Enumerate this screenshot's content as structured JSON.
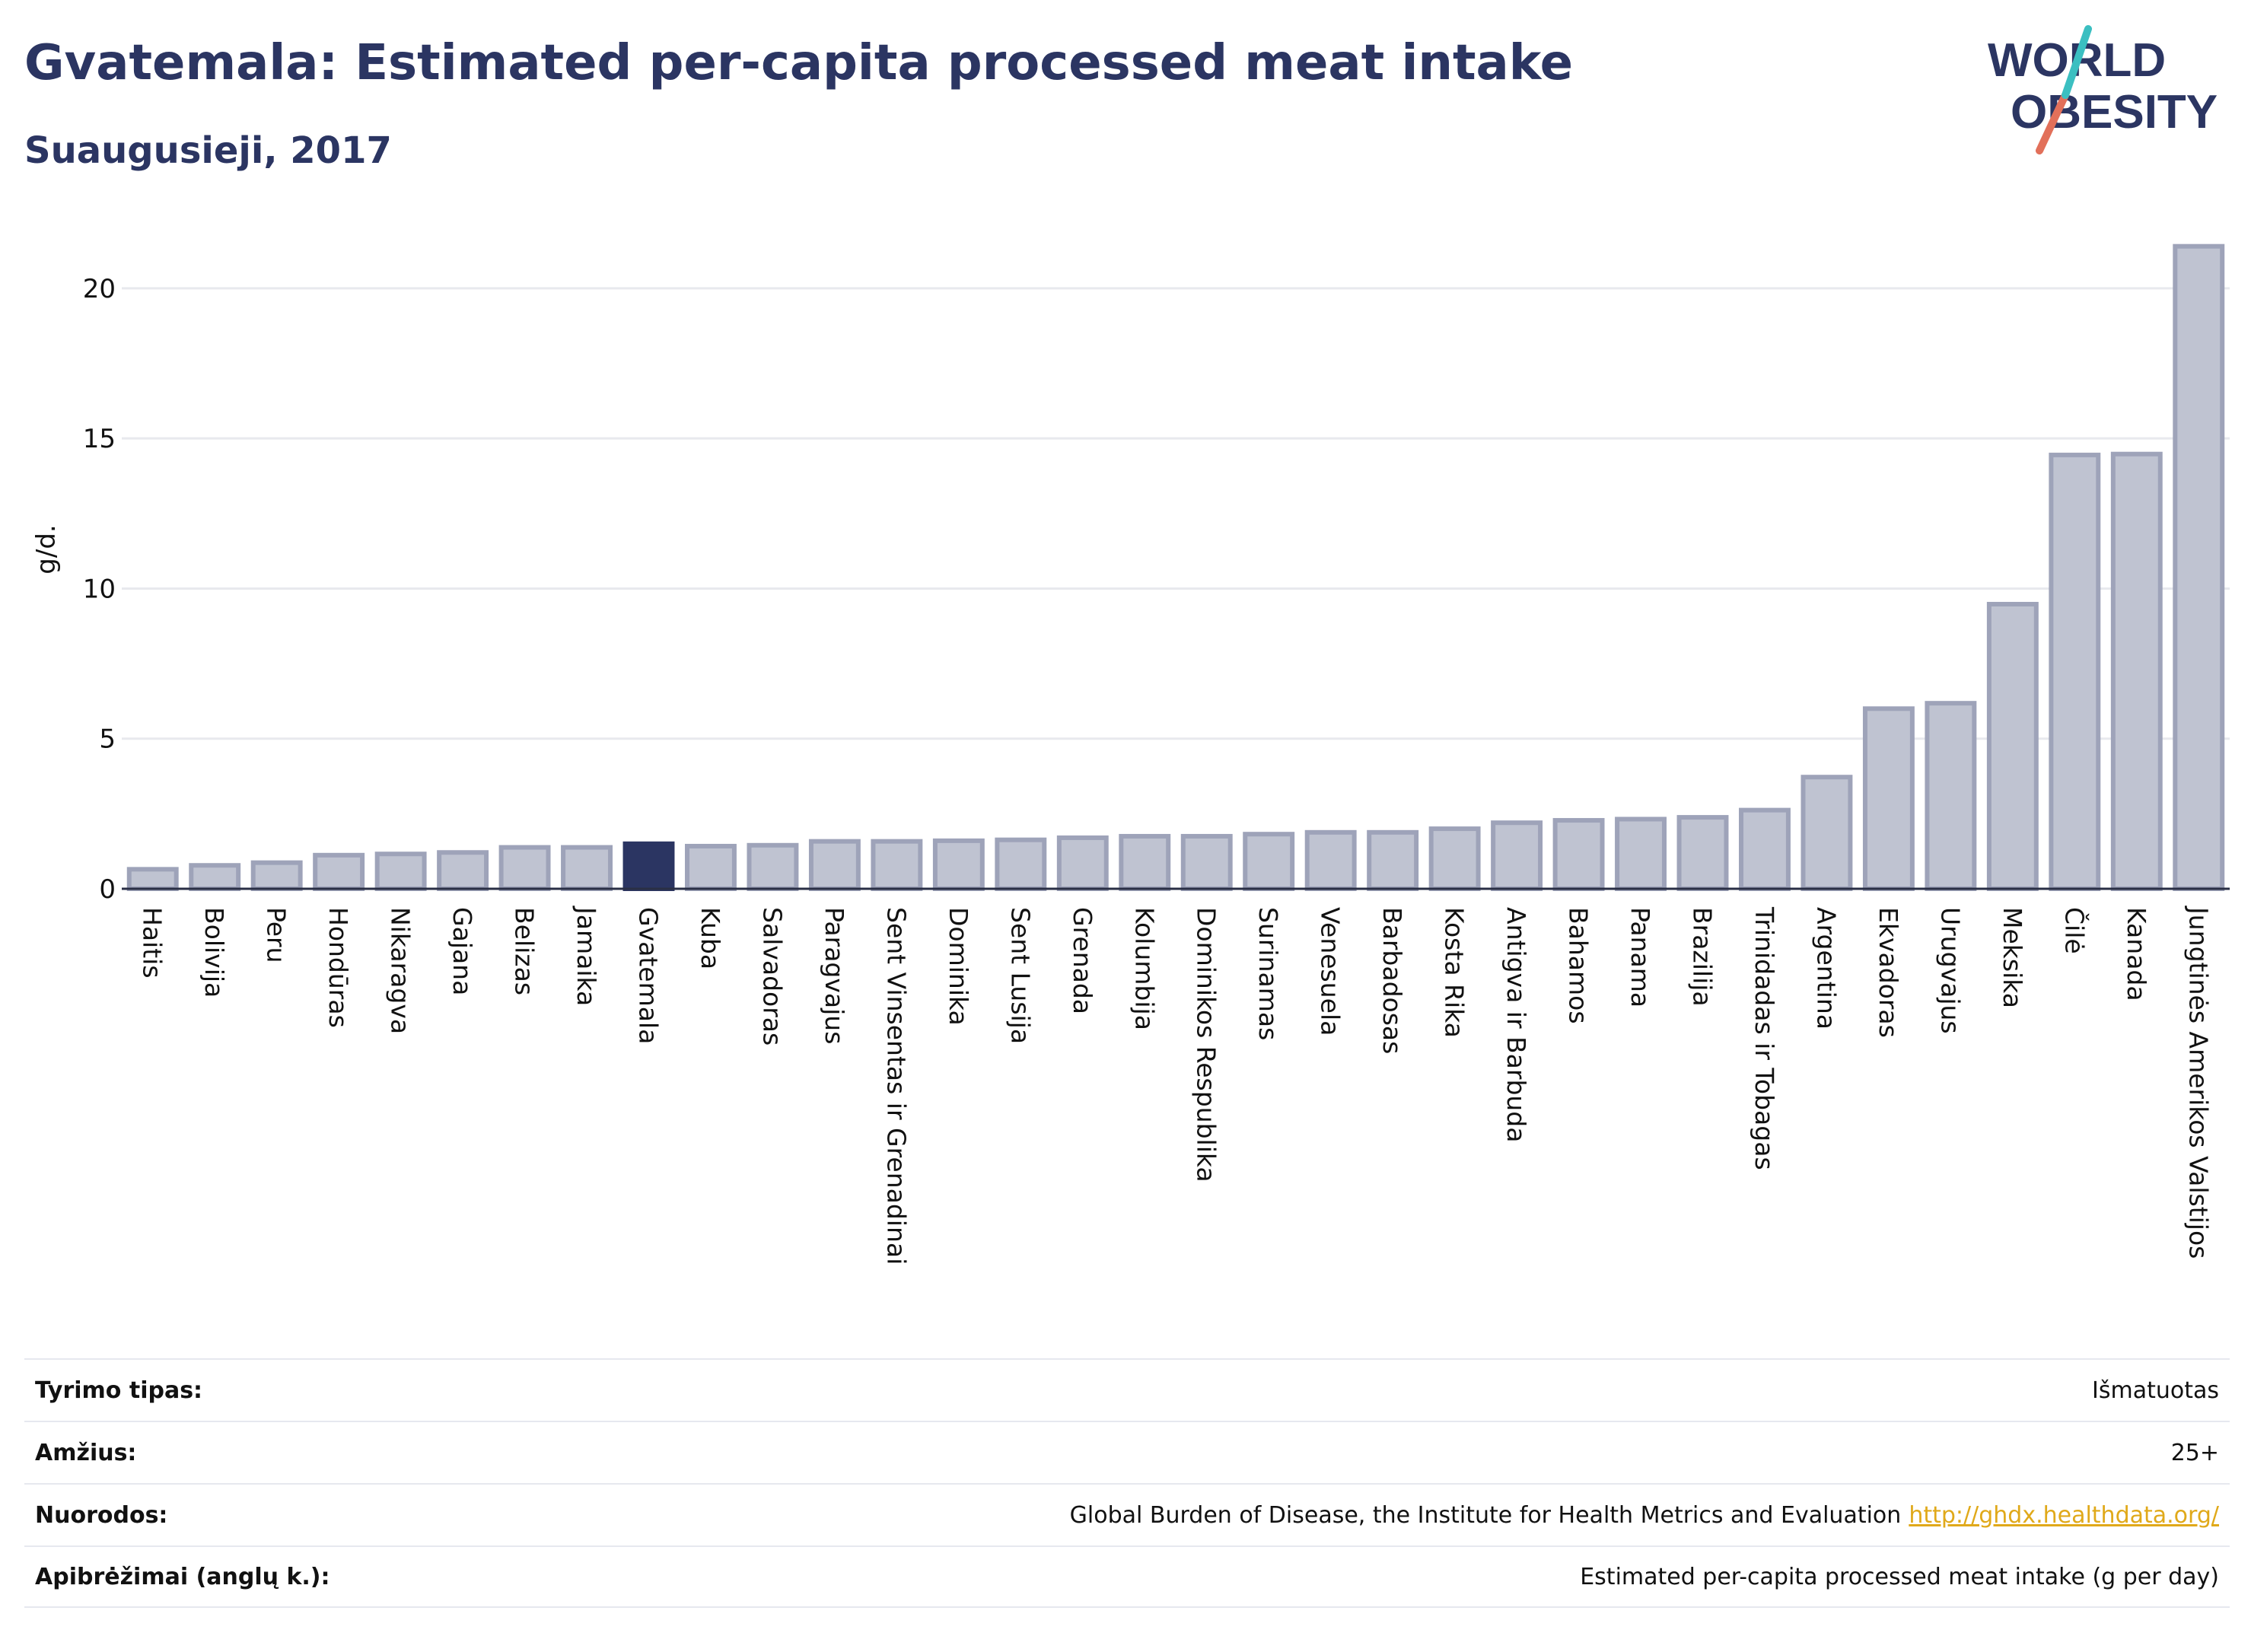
{
  "header": {
    "title": "Gvatemala: Estimated per-capita processed meat intake",
    "subtitle": "Suaugusieji, 2017"
  },
  "logo": {
    "line1": "WORLD",
    "line2": "OBESITY"
  },
  "colors": {
    "title": "#2b3562",
    "bar": "#bfc3d1",
    "bar_border": "#9ea3b9",
    "highlight": "#2b3562",
    "link": "#e0a91a"
  },
  "chart_data": {
    "type": "bar",
    "ylabel": "g/d.",
    "ylim": [
      0,
      22
    ],
    "yticks": [
      0,
      5,
      10,
      15,
      20
    ],
    "grid": true,
    "highlight": "Gvatemala",
    "categories": [
      "Haitis",
      "Bolivija",
      "Peru",
      "Hondūras",
      "Nikaragva",
      "Gajana",
      "Belizas",
      "Jamaika",
      "Gvatemala",
      "Kuba",
      "Salvadoras",
      "Paragvajus",
      "Sent Vinsentas ir Grenadinai",
      "Dominika",
      "Sent Lusija",
      "Grenada",
      "Kolumbija",
      "Dominikos Respublika",
      "Surinamas",
      "Venesuela",
      "Barbadosas",
      "Kosta Rika",
      "Antigva ir Barbuda",
      "Bahamos",
      "Panama",
      "Brazilija",
      "Trinidadas ir Tobagas",
      "Argentina",
      "Ekvadoras",
      "Urugvajus",
      "Meksika",
      "Čilė",
      "Kanada",
      "Jungtinės Amerikos Valstijos"
    ],
    "values": [
      0.65,
      0.78,
      0.87,
      1.12,
      1.16,
      1.21,
      1.38,
      1.38,
      1.5,
      1.42,
      1.45,
      1.58,
      1.58,
      1.6,
      1.63,
      1.7,
      1.75,
      1.75,
      1.82,
      1.88,
      1.88,
      2.0,
      2.2,
      2.28,
      2.32,
      2.38,
      2.62,
      3.72,
      6.0,
      6.18,
      9.48,
      14.45,
      14.48,
      21.4
    ]
  },
  "info": [
    {
      "label": "Tyrimo tipas:",
      "value": "Išmatuotas"
    },
    {
      "label": "Amžius:",
      "value": "25+"
    },
    {
      "label": "Nuorodos:",
      "value": "Global Burden of Disease, the Institute for Health Metrics and Evaluation",
      "link": "http://ghdx.healthdata.org/"
    },
    {
      "label": "Apibrėžimai (anglų k.):",
      "value": "Estimated per-capita processed meat intake (g per day)"
    }
  ]
}
